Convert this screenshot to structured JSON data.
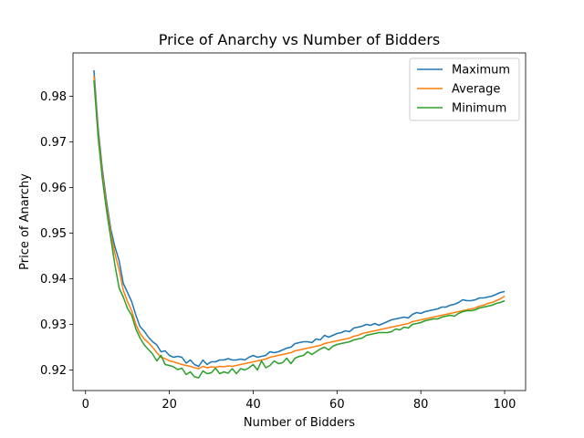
{
  "chart_data": {
    "type": "line",
    "title": "Price of Anarchy vs Number of Bidders",
    "xlabel": "Number of Bidders",
    "ylabel": "Price of Anarchy",
    "xlim": [
      -3,
      105
    ],
    "ylim": [
      0.9155,
      0.9895
    ],
    "xticks": [
      0,
      20,
      40,
      60,
      80,
      100
    ],
    "yticks": [
      0.92,
      0.93,
      0.94,
      0.95,
      0.96,
      0.97,
      0.98
    ],
    "ytick_labels": [
      "0.92",
      "0.93",
      "0.94",
      "0.95",
      "0.96",
      "0.97",
      "0.98"
    ],
    "grid": false,
    "legend_position": "top-right",
    "x": [
      2,
      3,
      4,
      5,
      6,
      7,
      8,
      9,
      10,
      11,
      12,
      13,
      14,
      15,
      16,
      17,
      18,
      19,
      20,
      21,
      22,
      23,
      24,
      25,
      26,
      27,
      28,
      29,
      30,
      31,
      32,
      33,
      34,
      35,
      36,
      37,
      38,
      39,
      40,
      41,
      42,
      43,
      44,
      45,
      46,
      47,
      48,
      49,
      50,
      51,
      52,
      53,
      54,
      55,
      56,
      57,
      58,
      59,
      60,
      61,
      62,
      63,
      64,
      65,
      66,
      67,
      68,
      69,
      70,
      71,
      72,
      73,
      74,
      75,
      76,
      77,
      78,
      79,
      80,
      81,
      82,
      83,
      84,
      85,
      86,
      87,
      88,
      89,
      90,
      91,
      92,
      93,
      94,
      95,
      96,
      97,
      98,
      99,
      100
    ],
    "series": [
      {
        "name": "Maximum",
        "color": "#1f77b4",
        "values": [
          0.9857,
          0.973,
          0.964,
          0.957,
          0.951,
          0.947,
          0.944,
          0.939,
          0.937,
          0.935,
          0.932,
          0.9295,
          0.9285,
          0.9272,
          0.9262,
          0.9255,
          0.924,
          0.9242,
          0.9232,
          0.9228,
          0.923,
          0.9228,
          0.9215,
          0.9222,
          0.9212,
          0.9208,
          0.9222,
          0.9212,
          0.9218,
          0.9218,
          0.9222,
          0.9222,
          0.9225,
          0.9222,
          0.9222,
          0.9224,
          0.9222,
          0.9228,
          0.9232,
          0.9228,
          0.923,
          0.9232,
          0.924,
          0.9238,
          0.924,
          0.9244,
          0.9248,
          0.925,
          0.9258,
          0.926,
          0.9262,
          0.9262,
          0.926,
          0.9268,
          0.9266,
          0.9276,
          0.9272,
          0.9276,
          0.928,
          0.9282,
          0.9286,
          0.9284,
          0.9292,
          0.9294,
          0.9296,
          0.93,
          0.9298,
          0.9302,
          0.9298,
          0.9302,
          0.9306,
          0.931,
          0.9312,
          0.9314,
          0.9316,
          0.9314,
          0.9322,
          0.9326,
          0.9324,
          0.9328,
          0.933,
          0.9332,
          0.9334,
          0.9338,
          0.9338,
          0.9342,
          0.9344,
          0.9348,
          0.9354,
          0.9352,
          0.9352,
          0.9354,
          0.9358,
          0.9358,
          0.936,
          0.9362,
          0.9366,
          0.937,
          0.9372
        ]
      },
      {
        "name": "Average",
        "color": "#ff7f0e",
        "values": [
          0.9845,
          0.972,
          0.963,
          0.956,
          0.95,
          0.9455,
          0.942,
          0.9375,
          0.935,
          0.933,
          0.93,
          0.928,
          0.9268,
          0.926,
          0.925,
          0.9238,
          0.9228,
          0.9225,
          0.922,
          0.9218,
          0.9215,
          0.9212,
          0.921,
          0.9208,
          0.9205,
          0.9203,
          0.9208,
          0.9205,
          0.9207,
          0.9206,
          0.9208,
          0.9207,
          0.9209,
          0.9208,
          0.921,
          0.9212,
          0.9214,
          0.9216,
          0.9218,
          0.922,
          0.9222,
          0.9224,
          0.9228,
          0.923,
          0.9232,
          0.9234,
          0.9236,
          0.9238,
          0.9242,
          0.9244,
          0.9246,
          0.9248,
          0.925,
          0.9252,
          0.9254,
          0.9258,
          0.926,
          0.9262,
          0.9264,
          0.9266,
          0.9268,
          0.927,
          0.9274,
          0.9276,
          0.928,
          0.9282,
          0.9284,
          0.9286,
          0.9288,
          0.929,
          0.9292,
          0.9294,
          0.9296,
          0.9298,
          0.93,
          0.9302,
          0.9306,
          0.9308,
          0.931,
          0.9312,
          0.9314,
          0.9316,
          0.9318,
          0.932,
          0.9322,
          0.9324,
          0.9326,
          0.9328,
          0.933,
          0.9332,
          0.9334,
          0.9336,
          0.934,
          0.9342,
          0.9346,
          0.9348,
          0.9352,
          0.9356,
          0.9362
        ]
      },
      {
        "name": "Minimum",
        "color": "#2ca02c",
        "values": [
          0.9835,
          0.971,
          0.962,
          0.955,
          0.949,
          0.943,
          0.938,
          0.936,
          0.9335,
          0.932,
          0.929,
          0.927,
          0.9255,
          0.9245,
          0.9235,
          0.922,
          0.9232,
          0.9212,
          0.921,
          0.9207,
          0.9201,
          0.9204,
          0.919,
          0.9196,
          0.9185,
          0.9183,
          0.9198,
          0.9192,
          0.9194,
          0.9204,
          0.9192,
          0.9196,
          0.9193,
          0.9203,
          0.9192,
          0.9203,
          0.92,
          0.9205,
          0.9212,
          0.92,
          0.922,
          0.9205,
          0.921,
          0.922,
          0.9214,
          0.9216,
          0.9226,
          0.9214,
          0.9226,
          0.923,
          0.9232,
          0.924,
          0.9234,
          0.924,
          0.9246,
          0.925,
          0.9244,
          0.9252,
          0.9256,
          0.9258,
          0.926,
          0.9262,
          0.9266,
          0.9268,
          0.927,
          0.9276,
          0.9278,
          0.928,
          0.9282,
          0.9282,
          0.9282,
          0.9284,
          0.929,
          0.9288,
          0.9294,
          0.9292,
          0.93,
          0.9302,
          0.9304,
          0.9308,
          0.931,
          0.9312,
          0.9312,
          0.9316,
          0.9318,
          0.932,
          0.9318,
          0.9324,
          0.9328,
          0.933,
          0.933,
          0.9332,
          0.9336,
          0.9338,
          0.934,
          0.9342,
          0.9346,
          0.9348,
          0.9352
        ]
      }
    ]
  }
}
